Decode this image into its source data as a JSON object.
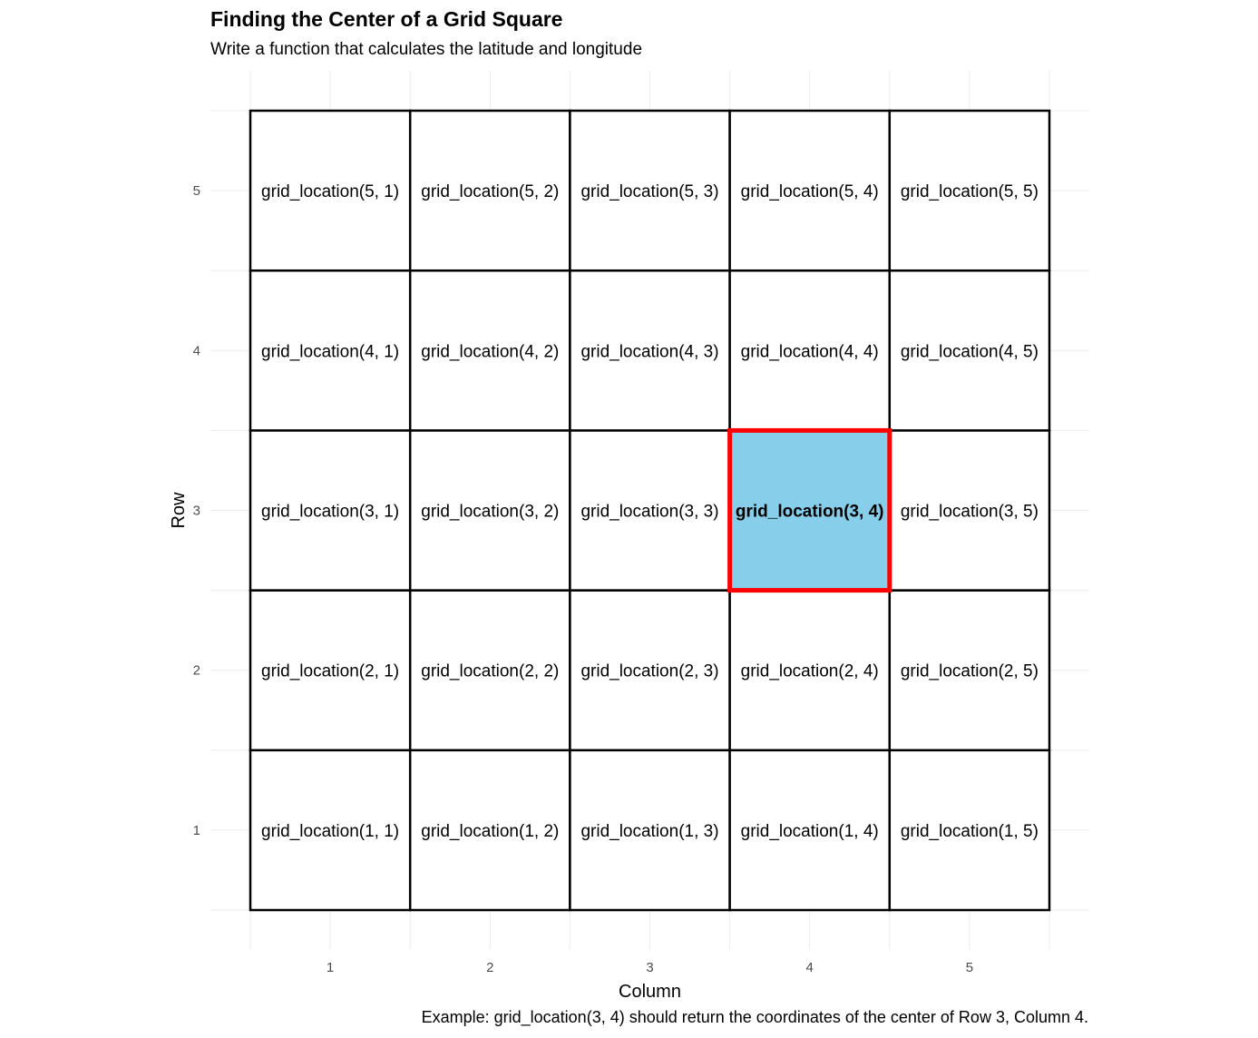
{
  "chart_data": {
    "type": "heatmap",
    "title": "Finding the Center of a Grid Square",
    "subtitle": "Write a function that calculates the latitude and longitude",
    "caption": "Example: grid_location(3, 4) should return the coordinates of the center of Row 3, Column 4.",
    "xlabel": "Column",
    "ylabel": "Row",
    "x_ticks": [
      "1",
      "2",
      "3",
      "4",
      "5"
    ],
    "y_ticks": [
      "1",
      "2",
      "3",
      "4",
      "5"
    ],
    "xlim": [
      0.5,
      5.5
    ],
    "ylim": [
      0.5,
      5.5
    ],
    "grid": true,
    "cells": [
      {
        "row": 1,
        "col": 1,
        "label": "grid_location(1, 1)"
      },
      {
        "row": 1,
        "col": 2,
        "label": "grid_location(1, 2)"
      },
      {
        "row": 1,
        "col": 3,
        "label": "grid_location(1, 3)"
      },
      {
        "row": 1,
        "col": 4,
        "label": "grid_location(1, 4)"
      },
      {
        "row": 1,
        "col": 5,
        "label": "grid_location(1, 5)"
      },
      {
        "row": 2,
        "col": 1,
        "label": "grid_location(2, 1)"
      },
      {
        "row": 2,
        "col": 2,
        "label": "grid_location(2, 2)"
      },
      {
        "row": 2,
        "col": 3,
        "label": "grid_location(2, 3)"
      },
      {
        "row": 2,
        "col": 4,
        "label": "grid_location(2, 4)"
      },
      {
        "row": 2,
        "col": 5,
        "label": "grid_location(2, 5)"
      },
      {
        "row": 3,
        "col": 1,
        "label": "grid_location(3, 1)"
      },
      {
        "row": 3,
        "col": 2,
        "label": "grid_location(3, 2)"
      },
      {
        "row": 3,
        "col": 3,
        "label": "grid_location(3, 3)"
      },
      {
        "row": 3,
        "col": 4,
        "label": "grid_location(3, 4)"
      },
      {
        "row": 3,
        "col": 5,
        "label": "grid_location(3, 5)"
      },
      {
        "row": 4,
        "col": 1,
        "label": "grid_location(4, 1)"
      },
      {
        "row": 4,
        "col": 2,
        "label": "grid_location(4, 2)"
      },
      {
        "row": 4,
        "col": 3,
        "label": "grid_location(4, 3)"
      },
      {
        "row": 4,
        "col": 4,
        "label": "grid_location(4, 4)"
      },
      {
        "row": 4,
        "col": 5,
        "label": "grid_location(4, 5)"
      },
      {
        "row": 5,
        "col": 1,
        "label": "grid_location(5, 1)"
      },
      {
        "row": 5,
        "col": 2,
        "label": "grid_location(5, 2)"
      },
      {
        "row": 5,
        "col": 3,
        "label": "grid_location(5, 3)"
      },
      {
        "row": 5,
        "col": 4,
        "label": "grid_location(5, 4)"
      },
      {
        "row": 5,
        "col": 5,
        "label": "grid_location(5, 5)"
      }
    ],
    "highlight": {
      "row": 3,
      "col": 4
    },
    "colors": {
      "cell_fill": "#ffffff",
      "cell_border": "#000000",
      "highlight_fill": "#87ceeb",
      "highlight_border": "#ff0000",
      "gridline": "#ebebeb",
      "tick_text": "#4d4d4d"
    }
  }
}
